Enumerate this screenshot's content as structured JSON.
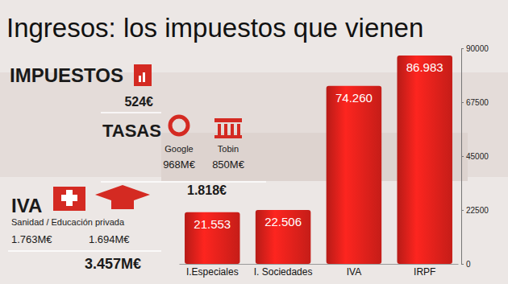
{
  "chart_data": {
    "type": "bar",
    "title": "Ingresos: los impuestos que vienen",
    "categories": [
      "I.Especiales",
      "I. Sociedades",
      "IVA",
      "IRPF"
    ],
    "values": [
      21553,
      22506,
      74260,
      86983
    ],
    "value_labels": [
      "21.553",
      "22.506",
      "74.260",
      "86.983"
    ],
    "data_labels": true,
    "color": "#e3211c",
    "ylim": [
      0,
      90000
    ],
    "yticks": [
      0,
      22500,
      45000,
      67500,
      90000
    ],
    "grid": false,
    "annotations": [
      "IMPUESTOS",
      "524€",
      "TASAS",
      "Google",
      "Tobin",
      "968M€",
      "850M€",
      "1.818€",
      "IVA",
      "Sanidad / Educación privada",
      "1.763M€",
      "1.694M€",
      "3.457M€"
    ]
  }
}
